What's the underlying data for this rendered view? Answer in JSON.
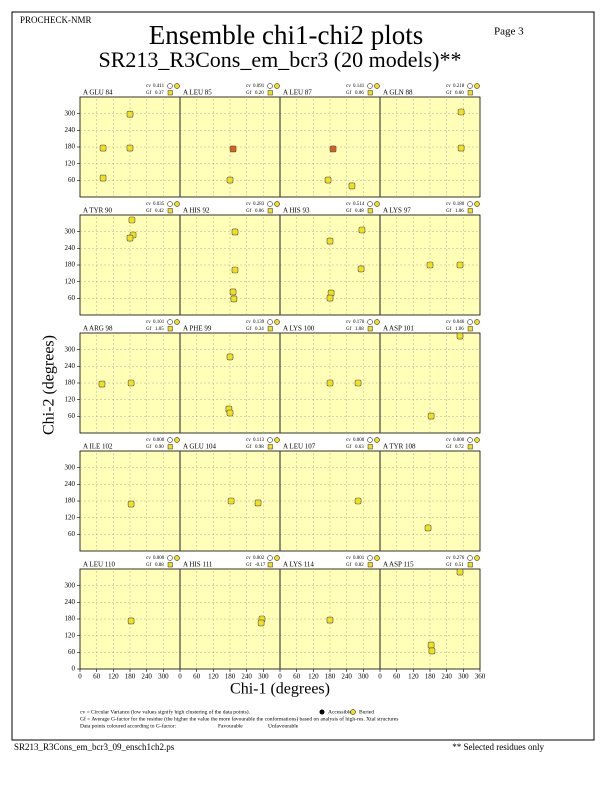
{
  "header": {
    "program": "PROCHECK-NMR",
    "page": "Page  3",
    "title": "Ensemble chi1-chi2 plots",
    "subtitle": "SR213_R3Cons_em_bcr3 (20 models)**"
  },
  "axes": {
    "x_label": "Chi-1 (degrees)",
    "y_label": "Chi-2 (degrees)",
    "xlim": [
      0,
      360
    ],
    "ylim": [
      0,
      360
    ],
    "xticks": [
      0,
      60,
      120,
      180,
      240,
      300,
      360
    ],
    "yticks": [
      0,
      60,
      120,
      180,
      240,
      300
    ],
    "grid": true
  },
  "cv_label": "cv",
  "gf_label": "Gf",
  "panels": [
    {
      "residue": "A GLU 84",
      "cv": "0.411",
      "gf": "0.37",
      "points": [
        {
          "chi1": 83,
          "chi2": 176,
          "color": "#f0e020"
        },
        {
          "chi1": 180,
          "chi2": 176,
          "color": "#f0e020"
        },
        {
          "chi1": 83,
          "chi2": 68,
          "color": "#f0e020"
        },
        {
          "chi1": 180,
          "chi2": 298,
          "color": "#f0e020"
        }
      ]
    },
    {
      "residue": "A LEU 85",
      "cv": "0.091",
      "gf": "0.20",
      "points": [
        {
          "chi1": 191,
          "chi2": 173,
          "color": "#d86018"
        },
        {
          "chi1": 180,
          "chi2": 61,
          "color": "#f0e020"
        }
      ]
    },
    {
      "residue": "A LEU 87",
      "cv": "0.141",
      "gf": "0.06",
      "points": [
        {
          "chi1": 191,
          "chi2": 173,
          "color": "#d86018"
        },
        {
          "chi1": 173,
          "chi2": 61,
          "color": "#f0e020"
        },
        {
          "chi1": 259,
          "chi2": 40,
          "color": "#f0e020"
        }
      ]
    },
    {
      "residue": "A GLN 88",
      "cv": "0.218",
      "gf": "0.60",
      "points": [
        {
          "chi1": 292,
          "chi2": 306,
          "color": "#f0e020"
        },
        {
          "chi1": 292,
          "chi2": 176,
          "color": "#f0e020"
        }
      ]
    },
    {
      "residue": "A TYR 90",
      "cv": "0.035",
      "gf": "0.42",
      "points": [
        {
          "chi1": 187,
          "chi2": 342,
          "color": "#f0e020"
        },
        {
          "chi1": 191,
          "chi2": 288,
          "color": "#f0e020"
        },
        {
          "chi1": 180,
          "chi2": 277,
          "color": "#f0e020"
        }
      ]
    },
    {
      "residue": "A HIS 92",
      "cv": "0.283",
      "gf": "0.06",
      "points": [
        {
          "chi1": 198,
          "chi2": 299,
          "color": "#f0e020"
        },
        {
          "chi1": 198,
          "chi2": 162,
          "color": "#f0e020"
        },
        {
          "chi1": 191,
          "chi2": 83,
          "color": "#f0e020"
        },
        {
          "chi1": 194,
          "chi2": 58,
          "color": "#f0e020"
        }
      ]
    },
    {
      "residue": "A HIS 93",
      "cv": "0.514",
      "gf": "0.48",
      "points": [
        {
          "chi1": 180,
          "chi2": 266,
          "color": "#f0e020"
        },
        {
          "chi1": 295,
          "chi2": 306,
          "color": "#f0e020"
        },
        {
          "chi1": 292,
          "chi2": 166,
          "color": "#f0e020"
        },
        {
          "chi1": 184,
          "chi2": 79,
          "color": "#f0e020"
        },
        {
          "chi1": 180,
          "chi2": 61,
          "color": "#f0e020"
        }
      ]
    },
    {
      "residue": "A LYS 97",
      "cv": "0.180",
      "gf": "1.06",
      "points": [
        {
          "chi1": 180,
          "chi2": 180,
          "color": "#f0e020"
        },
        {
          "chi1": 288,
          "chi2": 180,
          "color": "#f0e020"
        }
      ]
    },
    {
      "residue": "A ARG 98",
      "cv": "0.101",
      "gf": "1.05",
      "points": [
        {
          "chi1": 79,
          "chi2": 176,
          "color": "#f0e020"
        },
        {
          "chi1": 184,
          "chi2": 180,
          "color": "#f0e020"
        }
      ]
    },
    {
      "residue": "A PHE 99",
      "cv": "0.139",
      "gf": "0.34",
      "points": [
        {
          "chi1": 180,
          "chi2": 274,
          "color": "#f0e020"
        },
        {
          "chi1": 176,
          "chi2": 86,
          "color": "#f0e020"
        },
        {
          "chi1": 180,
          "chi2": 72,
          "color": "#f0e020"
        }
      ]
    },
    {
      "residue": "A LYS 100",
      "cv": "0.170",
      "gf": "1.08",
      "points": [
        {
          "chi1": 180,
          "chi2": 180,
          "color": "#f0e020"
        },
        {
          "chi1": 281,
          "chi2": 180,
          "color": "#f0e020"
        }
      ]
    },
    {
      "residue": "A ASP 101",
      "cv": "0.046",
      "gf": "1.06",
      "points": [
        {
          "chi1": 288,
          "chi2": 349,
          "color": "#f0e020"
        },
        {
          "chi1": 184,
          "chi2": 61,
          "color": "#f0e020"
        }
      ]
    },
    {
      "residue": "A ILE 102",
      "cv": "0.000",
      "gf": "0.90",
      "points": [
        {
          "chi1": 184,
          "chi2": 169,
          "color": "#f0e020"
        }
      ]
    },
    {
      "residue": "A GLU 104",
      "cv": "0.113",
      "gf": "0.98",
      "points": [
        {
          "chi1": 184,
          "chi2": 180,
          "color": "#f0e020"
        },
        {
          "chi1": 281,
          "chi2": 173,
          "color": "#f0e020"
        }
      ]
    },
    {
      "residue": "A LEU 107",
      "cv": "0.000",
      "gf": "0.63",
      "points": [
        {
          "chi1": 281,
          "chi2": 180,
          "color": "#f0e020"
        }
      ]
    },
    {
      "residue": "A TYR 108",
      "cv": "0.000",
      "gf": "0.72",
      "points": [
        {
          "chi1": 173,
          "chi2": 83,
          "color": "#f0e020"
        }
      ]
    },
    {
      "residue": "A LEU 110",
      "cv": "0.000",
      "gf": "0.88",
      "points": [
        {
          "chi1": 184,
          "chi2": 173,
          "color": "#f0e020"
        }
      ]
    },
    {
      "residue": "A HIS 111",
      "cv": "0.002",
      "gf": "-0.17",
      "points": [
        {
          "chi1": 295,
          "chi2": 180,
          "color": "#f0e020"
        },
        {
          "chi1": 292,
          "chi2": 166,
          "color": "#f0e020"
        }
      ]
    },
    {
      "residue": "A LYS 114",
      "cv": "0.001",
      "gf": "0.82",
      "points": [
        {
          "chi1": 180,
          "chi2": 176,
          "color": "#f0e020"
        }
      ]
    },
    {
      "residue": "A ASP 115",
      "cv": "0.276",
      "gf": "0.51",
      "points": [
        {
          "chi1": 288,
          "chi2": 349,
          "color": "#f0e020"
        },
        {
          "chi1": 184,
          "chi2": 86,
          "color": "#f0e020"
        },
        {
          "chi1": 187,
          "chi2": 65,
          "color": "#f0e020"
        }
      ]
    }
  ],
  "legend": {
    "cv_note": "cv = Circular Variance (low values signify high clustering of the data points).",
    "accessible": "Accessible",
    "buried": "Buried",
    "gf_note": "Gf = Average G-factor for the residue (the higher the value the more favourable the conformations) based on analysis of high-res. Xtal structures",
    "colour_note": "Data points coloured according to G-factor:",
    "favourable": "Favourable",
    "favourable_color": "#f0e020",
    "unfavourable": "Unfavourable",
    "unfavourable_color": "#d86018"
  },
  "footer": {
    "file": "SR213_R3Cons_em_bcr3_09_ensch1ch2.ps",
    "note": "** Selected residues only"
  }
}
